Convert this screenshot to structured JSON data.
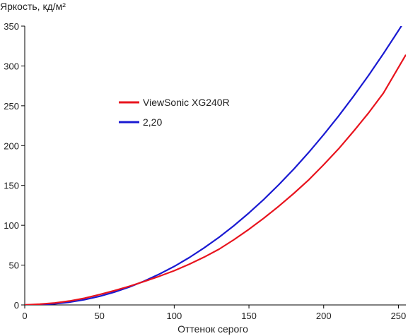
{
  "chart_data": {
    "type": "line",
    "title": "",
    "xlabel": "Оттенок серого",
    "ylabel": "Яркость, кд/м²",
    "xlim": [
      0,
      255
    ],
    "ylim": [
      0,
      350
    ],
    "x_ticks": [
      "0",
      "50",
      "100",
      "150",
      "200",
      "250"
    ],
    "y_ticks": [
      "0",
      "50",
      "100",
      "150",
      "200",
      "250",
      "300",
      "350"
    ],
    "grid": false,
    "legend_position": "center-left",
    "series": [
      {
        "name": "ViewSonic XG240R",
        "color": "#e8141e",
        "x": [
          0,
          10,
          20,
          30,
          40,
          50,
          60,
          70,
          80,
          90,
          100,
          110,
          120,
          130,
          140,
          150,
          160,
          170,
          180,
          190,
          200,
          210,
          220,
          230,
          240,
          250,
          255
        ],
        "y": [
          0,
          1,
          2.5,
          5,
          8.5,
          13,
          18,
          23.5,
          29.5,
          36,
          43,
          51,
          60,
          70,
          82,
          95,
          109,
          124,
          140,
          157,
          176,
          196,
          218,
          241,
          266,
          298,
          314
        ]
      },
      {
        "name": "2,20",
        "color": "#1a1ad2",
        "x": [
          0,
          10,
          20,
          30,
          40,
          50,
          60,
          70,
          80,
          90,
          100,
          110,
          120,
          130,
          140,
          150,
          160,
          170,
          180,
          190,
          200,
          210,
          220,
          230,
          240,
          250,
          255
        ],
        "y": [
          0,
          0.3,
          1.4,
          3.5,
          6.6,
          10.8,
          16.1,
          22.5,
          30.0,
          38.6,
          48.4,
          59.4,
          71.6,
          85.0,
          99.6,
          115.5,
          132.6,
          151.0,
          170.6,
          191.5,
          213.7,
          237.2,
          262.0,
          288.1,
          315.5,
          344.2,
          359.0
        ]
      }
    ]
  }
}
